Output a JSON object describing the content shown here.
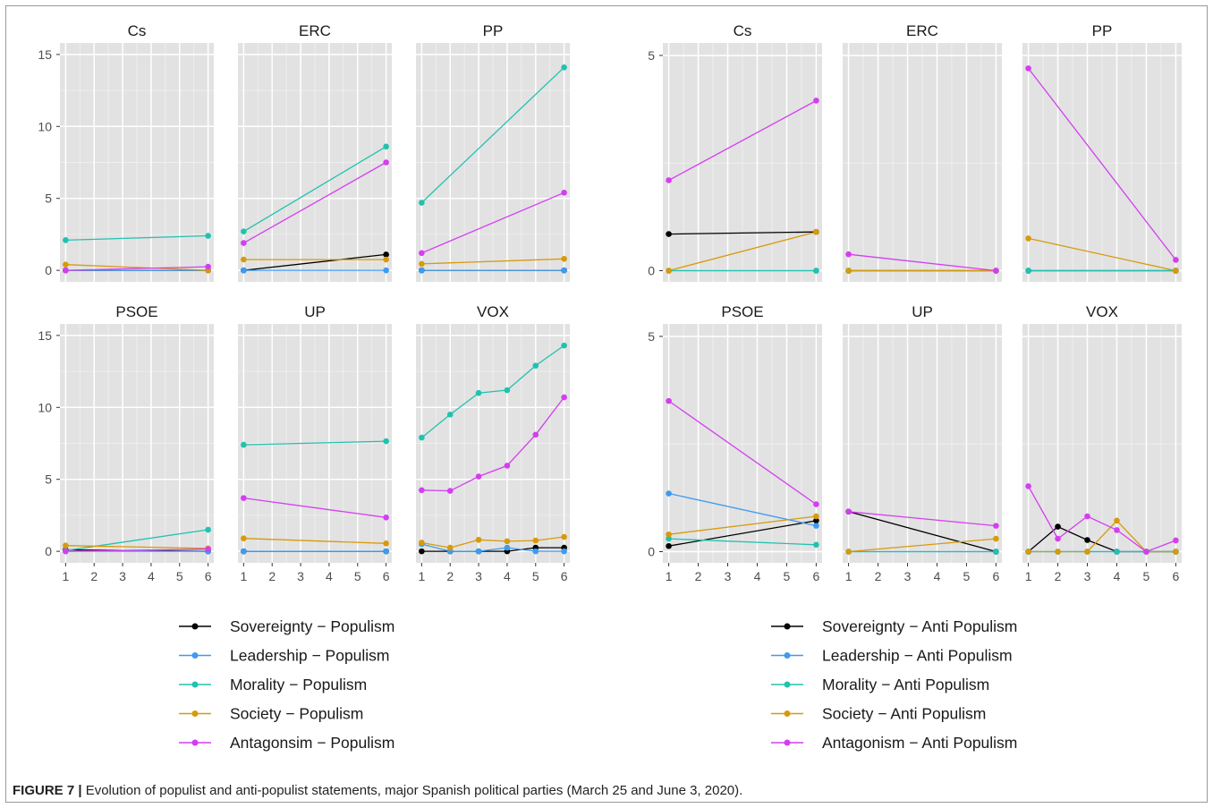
{
  "colors": {
    "sovereignty": "#000000",
    "leadership": "#3d9bf0",
    "morality": "#20c2b0",
    "society": "#d79a0a",
    "antagonism": "#d43ef0",
    "panel_bg": "#e2e2e2",
    "grid": "#ffffff"
  },
  "caption": {
    "label": "FIGURE 7 |",
    "text": " Evolution of populist and anti-populist statements, major Spanish political parties (March 25 and June 3, 2020)."
  },
  "chart_data": [
    {
      "type": "line",
      "facet": "party",
      "x_ticks": [
        1,
        2,
        3,
        4,
        5,
        6
      ],
      "xlim": [
        0.8,
        6.2
      ],
      "ylim": [
        -0.8,
        15.8
      ],
      "y_ticks": [
        0,
        5,
        10,
        15
      ],
      "grid": true,
      "legend_position": "bottom",
      "series_names": [
        "Sovereignty − Populism",
        "Leadership − Populism",
        "Morality − Populism",
        "Society − Populism",
        "Antagonsim − Populism"
      ],
      "panels": [
        {
          "title": "Cs",
          "series": [
            {
              "x": [
                1,
                6
              ],
              "y": [
                0,
                0
              ]
            },
            {
              "x": [
                1,
                6
              ],
              "y": [
                0,
                0
              ]
            },
            {
              "x": [
                1,
                6
              ],
              "y": [
                2.1,
                2.4
              ]
            },
            {
              "x": [
                1,
                6
              ],
              "y": [
                0.4,
                0
              ]
            },
            {
              "x": [
                1,
                6
              ],
              "y": [
                0,
                0.25
              ]
            }
          ]
        },
        {
          "title": "ERC",
          "series": [
            {
              "x": [
                1,
                6
              ],
              "y": [
                0,
                1.1
              ]
            },
            {
              "x": [
                1,
                6
              ],
              "y": [
                0,
                0
              ]
            },
            {
              "x": [
                1,
                6
              ],
              "y": [
                2.7,
                8.6
              ]
            },
            {
              "x": [
                1,
                6
              ],
              "y": [
                0.75,
                0.75
              ]
            },
            {
              "x": [
                1,
                6
              ],
              "y": [
                1.9,
                7.5
              ]
            }
          ]
        },
        {
          "title": "PP",
          "series": [
            {
              "x": [
                1,
                6
              ],
              "y": [
                0,
                0
              ]
            },
            {
              "x": [
                1,
                6
              ],
              "y": [
                0,
                0
              ]
            },
            {
              "x": [
                1,
                6
              ],
              "y": [
                4.7,
                14.1
              ]
            },
            {
              "x": [
                1,
                6
              ],
              "y": [
                0.45,
                0.8
              ]
            },
            {
              "x": [
                1,
                6
              ],
              "y": [
                1.2,
                5.4
              ]
            }
          ]
        },
        {
          "title": "PSOE",
          "series": [
            {
              "x": [
                1,
                6
              ],
              "y": [
                0.1,
                0
              ]
            },
            {
              "x": [
                1,
                6
              ],
              "y": [
                0,
                0
              ]
            },
            {
              "x": [
                1,
                6
              ],
              "y": [
                0.05,
                1.5
              ]
            },
            {
              "x": [
                1,
                6
              ],
              "y": [
                0.4,
                0.2
              ]
            },
            {
              "x": [
                1,
                6
              ],
              "y": [
                0,
                0.15
              ]
            }
          ]
        },
        {
          "title": "UP",
          "series": [
            {
              "x": [
                1,
                6
              ],
              "y": [
                0,
                0
              ]
            },
            {
              "x": [
                1,
                6
              ],
              "y": [
                0,
                0
              ]
            },
            {
              "x": [
                1,
                6
              ],
              "y": [
                7.4,
                7.65
              ]
            },
            {
              "x": [
                1,
                6
              ],
              "y": [
                0.9,
                0.55
              ]
            },
            {
              "x": [
                1,
                6
              ],
              "y": [
                3.7,
                2.35
              ]
            }
          ]
        },
        {
          "title": "VOX",
          "series": [
            {
              "x": [
                1,
                2,
                3,
                4,
                5,
                6
              ],
              "y": [
                0,
                0,
                0,
                0,
                0.25,
                0.25
              ]
            },
            {
              "x": [
                1,
                2,
                3,
                4,
                5,
                6
              ],
              "y": [
                0.5,
                0,
                0,
                0.25,
                0,
                0
              ]
            },
            {
              "x": [
                1,
                2,
                3,
                4,
                5,
                6
              ],
              "y": [
                7.9,
                9.5,
                11.0,
                11.2,
                12.9,
                14.3
              ]
            },
            {
              "x": [
                1,
                2,
                3,
                4,
                5,
                6
              ],
              "y": [
                0.6,
                0.25,
                0.8,
                0.7,
                0.75,
                1.0
              ]
            },
            {
              "x": [
                1,
                2,
                3,
                4,
                5,
                6
              ],
              "y": [
                4.25,
                4.2,
                5.2,
                5.95,
                8.1,
                10.7
              ]
            }
          ]
        }
      ]
    },
    {
      "type": "line",
      "facet": "party",
      "x_ticks": [
        1,
        2,
        3,
        4,
        5,
        6
      ],
      "xlim": [
        0.8,
        6.2
      ],
      "ylim": [
        -0.26,
        5.29
      ],
      "y_ticks": [
        0,
        5
      ],
      "grid": true,
      "legend_position": "bottom",
      "series_names": [
        "Sovereignty − Anti Populism",
        "Leadership − Anti Populism",
        "Morality − Anti Populism",
        "Society − Anti Populism",
        "Antagonism − Anti Populism"
      ],
      "panels": [
        {
          "title": "Cs",
          "series": [
            {
              "x": [
                1,
                6
              ],
              "y": [
                0.85,
                0.9
              ]
            },
            {
              "x": [
                1,
                6
              ],
              "y": [
                0,
                0
              ]
            },
            {
              "x": [
                1,
                6
              ],
              "y": [
                0,
                0
              ]
            },
            {
              "x": [
                1,
                6
              ],
              "y": [
                0,
                0.9
              ]
            },
            {
              "x": [
                1,
                6
              ],
              "y": [
                2.1,
                3.95
              ]
            }
          ]
        },
        {
          "title": "ERC",
          "series": [
            {
              "x": [
                1,
                6
              ],
              "y": [
                0,
                0
              ]
            },
            {
              "x": [
                1,
                6
              ],
              "y": [
                0,
                0
              ]
            },
            {
              "x": [
                1,
                6
              ],
              "y": [
                0,
                0
              ]
            },
            {
              "x": [
                1,
                6
              ],
              "y": [
                0,
                0
              ]
            },
            {
              "x": [
                1,
                6
              ],
              "y": [
                0.38,
                0
              ]
            }
          ]
        },
        {
          "title": "PP",
          "series": [
            {
              "x": [
                1,
                6
              ],
              "y": [
                0,
                0
              ]
            },
            {
              "x": [
                1,
                6
              ],
              "y": [
                0,
                0
              ]
            },
            {
              "x": [
                1,
                6
              ],
              "y": [
                0,
                0
              ]
            },
            {
              "x": [
                1,
                6
              ],
              "y": [
                0.75,
                0
              ]
            },
            {
              "x": [
                1,
                6
              ],
              "y": [
                4.7,
                0.25
              ]
            }
          ]
        },
        {
          "title": "PSOE",
          "series": [
            {
              "x": [
                1,
                6
              ],
              "y": [
                0.13,
                0.72
              ]
            },
            {
              "x": [
                1,
                6
              ],
              "y": [
                1.35,
                0.6
              ]
            },
            {
              "x": [
                1,
                6
              ],
              "y": [
                0.3,
                0.16
              ]
            },
            {
              "x": [
                1,
                6
              ],
              "y": [
                0.4,
                0.82
              ]
            },
            {
              "x": [
                1,
                6
              ],
              "y": [
                3.5,
                1.1
              ]
            }
          ]
        },
        {
          "title": "UP",
          "series": [
            {
              "x": [
                1,
                6
              ],
              "y": [
                0.93,
                0
              ]
            },
            {
              "x": [
                1,
                6
              ],
              "y": [
                0,
                0
              ]
            },
            {
              "x": [
                1,
                6
              ],
              "y": [
                0,
                0
              ]
            },
            {
              "x": [
                1,
                6
              ],
              "y": [
                0,
                0.3
              ]
            },
            {
              "x": [
                1,
                6
              ],
              "y": [
                0.93,
                0.6
              ]
            }
          ]
        },
        {
          "title": "VOX",
          "series": [
            {
              "x": [
                1,
                2,
                3,
                4,
                5,
                6
              ],
              "y": [
                0,
                0.58,
                0.27,
                0,
                0,
                0
              ]
            },
            {
              "x": [
                1,
                2,
                3,
                4,
                5,
                6
              ],
              "y": [
                0,
                0,
                0,
                0,
                0,
                0
              ]
            },
            {
              "x": [
                1,
                2,
                3,
                4,
                5,
                6
              ],
              "y": [
                0,
                0,
                0,
                0,
                0,
                0
              ]
            },
            {
              "x": [
                1,
                2,
                3,
                4,
                5,
                6
              ],
              "y": [
                0,
                0,
                0,
                0.72,
                0,
                0
              ]
            },
            {
              "x": [
                1,
                2,
                3,
                4,
                5,
                6
              ],
              "y": [
                1.52,
                0.3,
                0.82,
                0.5,
                0,
                0.26
              ]
            }
          ]
        }
      ]
    }
  ]
}
